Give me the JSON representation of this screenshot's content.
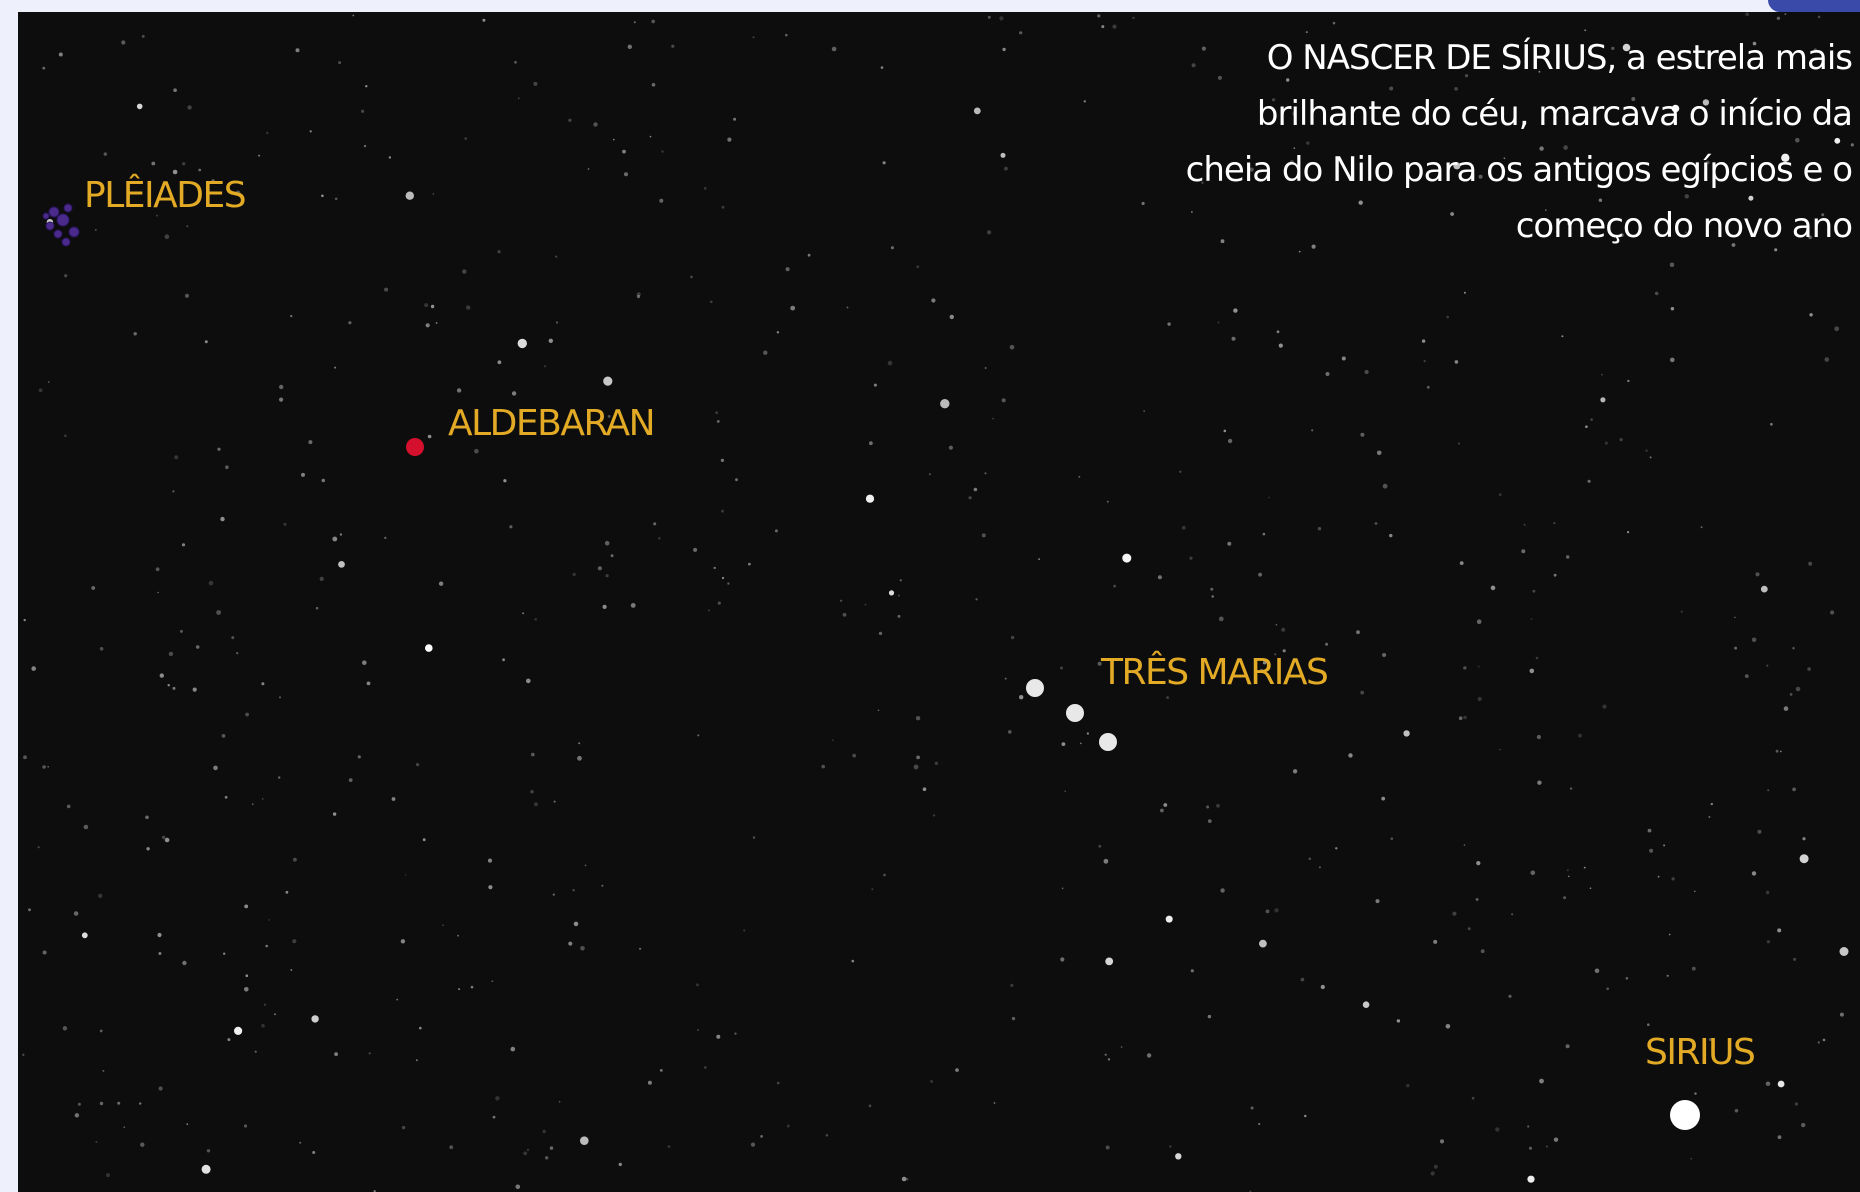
{
  "description_lines": [
    "O NASCER DE SÍRIUS, a estrela mais",
    "brilhante do céu, marcava o início da",
    "cheia do Nilo para os antigos egípcios e o",
    "começo do novo ano"
  ],
  "labels": {
    "pleiades": "PLÊIADES",
    "aldebaran": "ALDEBARAN",
    "tres_marias": "TRÊS MARIAS",
    "sirius": "SIRIUS"
  }
}
